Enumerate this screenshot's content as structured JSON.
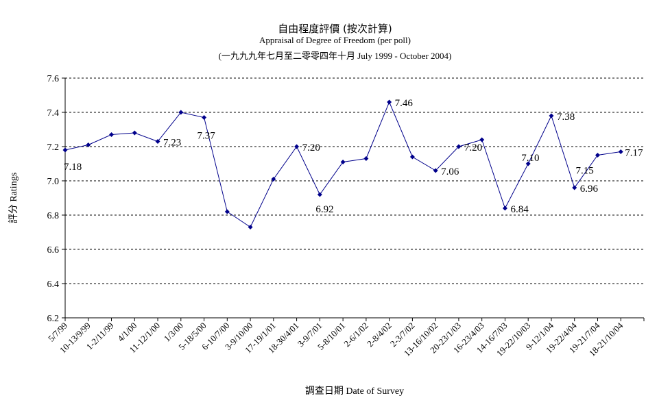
{
  "chart_data": {
    "type": "line",
    "title_zh": "自由程度評價 (按次計算)",
    "title": "Appraisal of Degree of Freedom  (per poll)",
    "subtitle": "(一九九九年七月至二零零四年十月 July 1999 - October 2004)",
    "xlabel": "調查日期 Date of Survey",
    "ylabel": "評分 Ratings",
    "ylim": [
      6.2,
      7.6
    ],
    "yticks": [
      "6.2",
      "6.4",
      "6.6",
      "6.8",
      "7.0",
      "7.2",
      "7.4",
      "7.6"
    ],
    "grid": true,
    "line_color": "#00008b",
    "categories": [
      "5/7/99",
      "10-13/9/99",
      "1-2/11/99",
      "4/1/00",
      "11-12/1/00",
      "1/3/00",
      "5-18/5/00",
      "6-10/7/00",
      "3-9/10/00",
      "17-19/1/01",
      "18-30/4/01",
      "3-9/7/01",
      "5-8/10/01",
      "2-6/1/02",
      "2-8/4/02",
      "2-3/7/02",
      "13-16/10/02",
      "20-23/1/03",
      "16-23/4/03",
      "14-16/7/03",
      "19-22/10/03",
      "9-12/1/04",
      "19-22/4/04",
      "19-21/7/04",
      "18-21/10/04"
    ],
    "x_tick_labels": [
      "5/7/99",
      "10-13/9/99",
      "1-2/11/99",
      "4/1/00",
      "11-12/1/00",
      "1/3/00",
      "5-18/5/00",
      "6-10/7/00",
      "3-9/10/00",
      "17-19/1/01",
      "18-30/4/01",
      "3-9/7/01",
      "5-8/10/01",
      "2-6/1/02",
      "2-8/4/02",
      "2-3/7/02",
      "13-16/10/02",
      "20-23/1/03",
      "16-23/4/03",
      "14-16/7/03",
      "19-22/10/03",
      "9-12/1/04",
      "19-22/4/04",
      "19-21/7/04",
      "18-21/10/04"
    ],
    "values": [
      7.18,
      7.21,
      7.27,
      7.28,
      7.23,
      7.4,
      7.37,
      6.82,
      6.73,
      7.01,
      7.2,
      6.92,
      7.11,
      7.13,
      7.46,
      7.14,
      7.06,
      7.2,
      7.24,
      6.84,
      7.1,
      7.38,
      6.96,
      7.15,
      7.17
    ],
    "data_labels": [
      {
        "index": 0,
        "text": "7.18"
      },
      {
        "index": 4,
        "text": "7.23"
      },
      {
        "index": 6,
        "text": "7.37"
      },
      {
        "index": 10,
        "text": "7.20"
      },
      {
        "index": 11,
        "text": "6.92"
      },
      {
        "index": 14,
        "text": "7.46"
      },
      {
        "index": 16,
        "text": "7.06"
      },
      {
        "index": 17,
        "text": "7.20"
      },
      {
        "index": 19,
        "text": "6.84"
      },
      {
        "index": 20,
        "text": "7.10"
      },
      {
        "index": 21,
        "text": "7.38"
      },
      {
        "index": 22,
        "text": "6.96"
      },
      {
        "index": 23,
        "text": "7.15"
      },
      {
        "index": 24,
        "text": "7.17"
      }
    ]
  }
}
